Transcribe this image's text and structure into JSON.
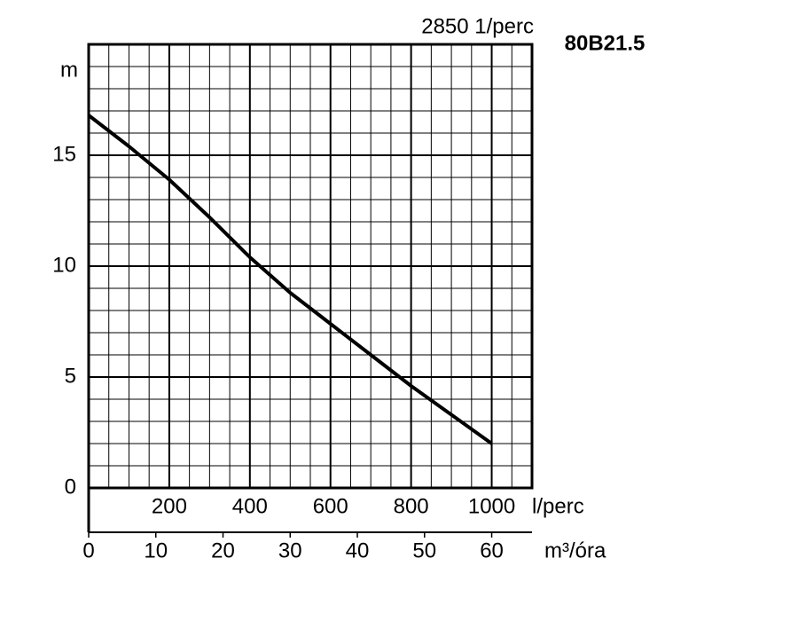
{
  "chart_data": {
    "type": "line",
    "title": "2850 1/perc",
    "subtitle": "80B21.5",
    "ylabel": "m",
    "xlabel": "l/perc",
    "x2label": "m³/óra",
    "x": [
      0,
      100,
      200,
      300,
      400,
      500,
      600,
      700,
      800,
      900,
      1000
    ],
    "series": [
      {
        "color": "#000000",
        "values": [
          16.8,
          15.4,
          13.9,
          12.2,
          10.4,
          8.8,
          7.4,
          6.0,
          4.6,
          3.3,
          2.0
        ]
      }
    ],
    "xlim": [
      0,
      1100
    ],
    "xticks": [
      200,
      400,
      600,
      800,
      1000
    ],
    "ylim": [
      0,
      20
    ],
    "yticks": [
      0,
      5,
      10,
      15
    ],
    "x2lim": [
      0,
      66
    ],
    "x2ticks": [
      0,
      10,
      20,
      30,
      40,
      50,
      60
    ],
    "grid": true
  }
}
